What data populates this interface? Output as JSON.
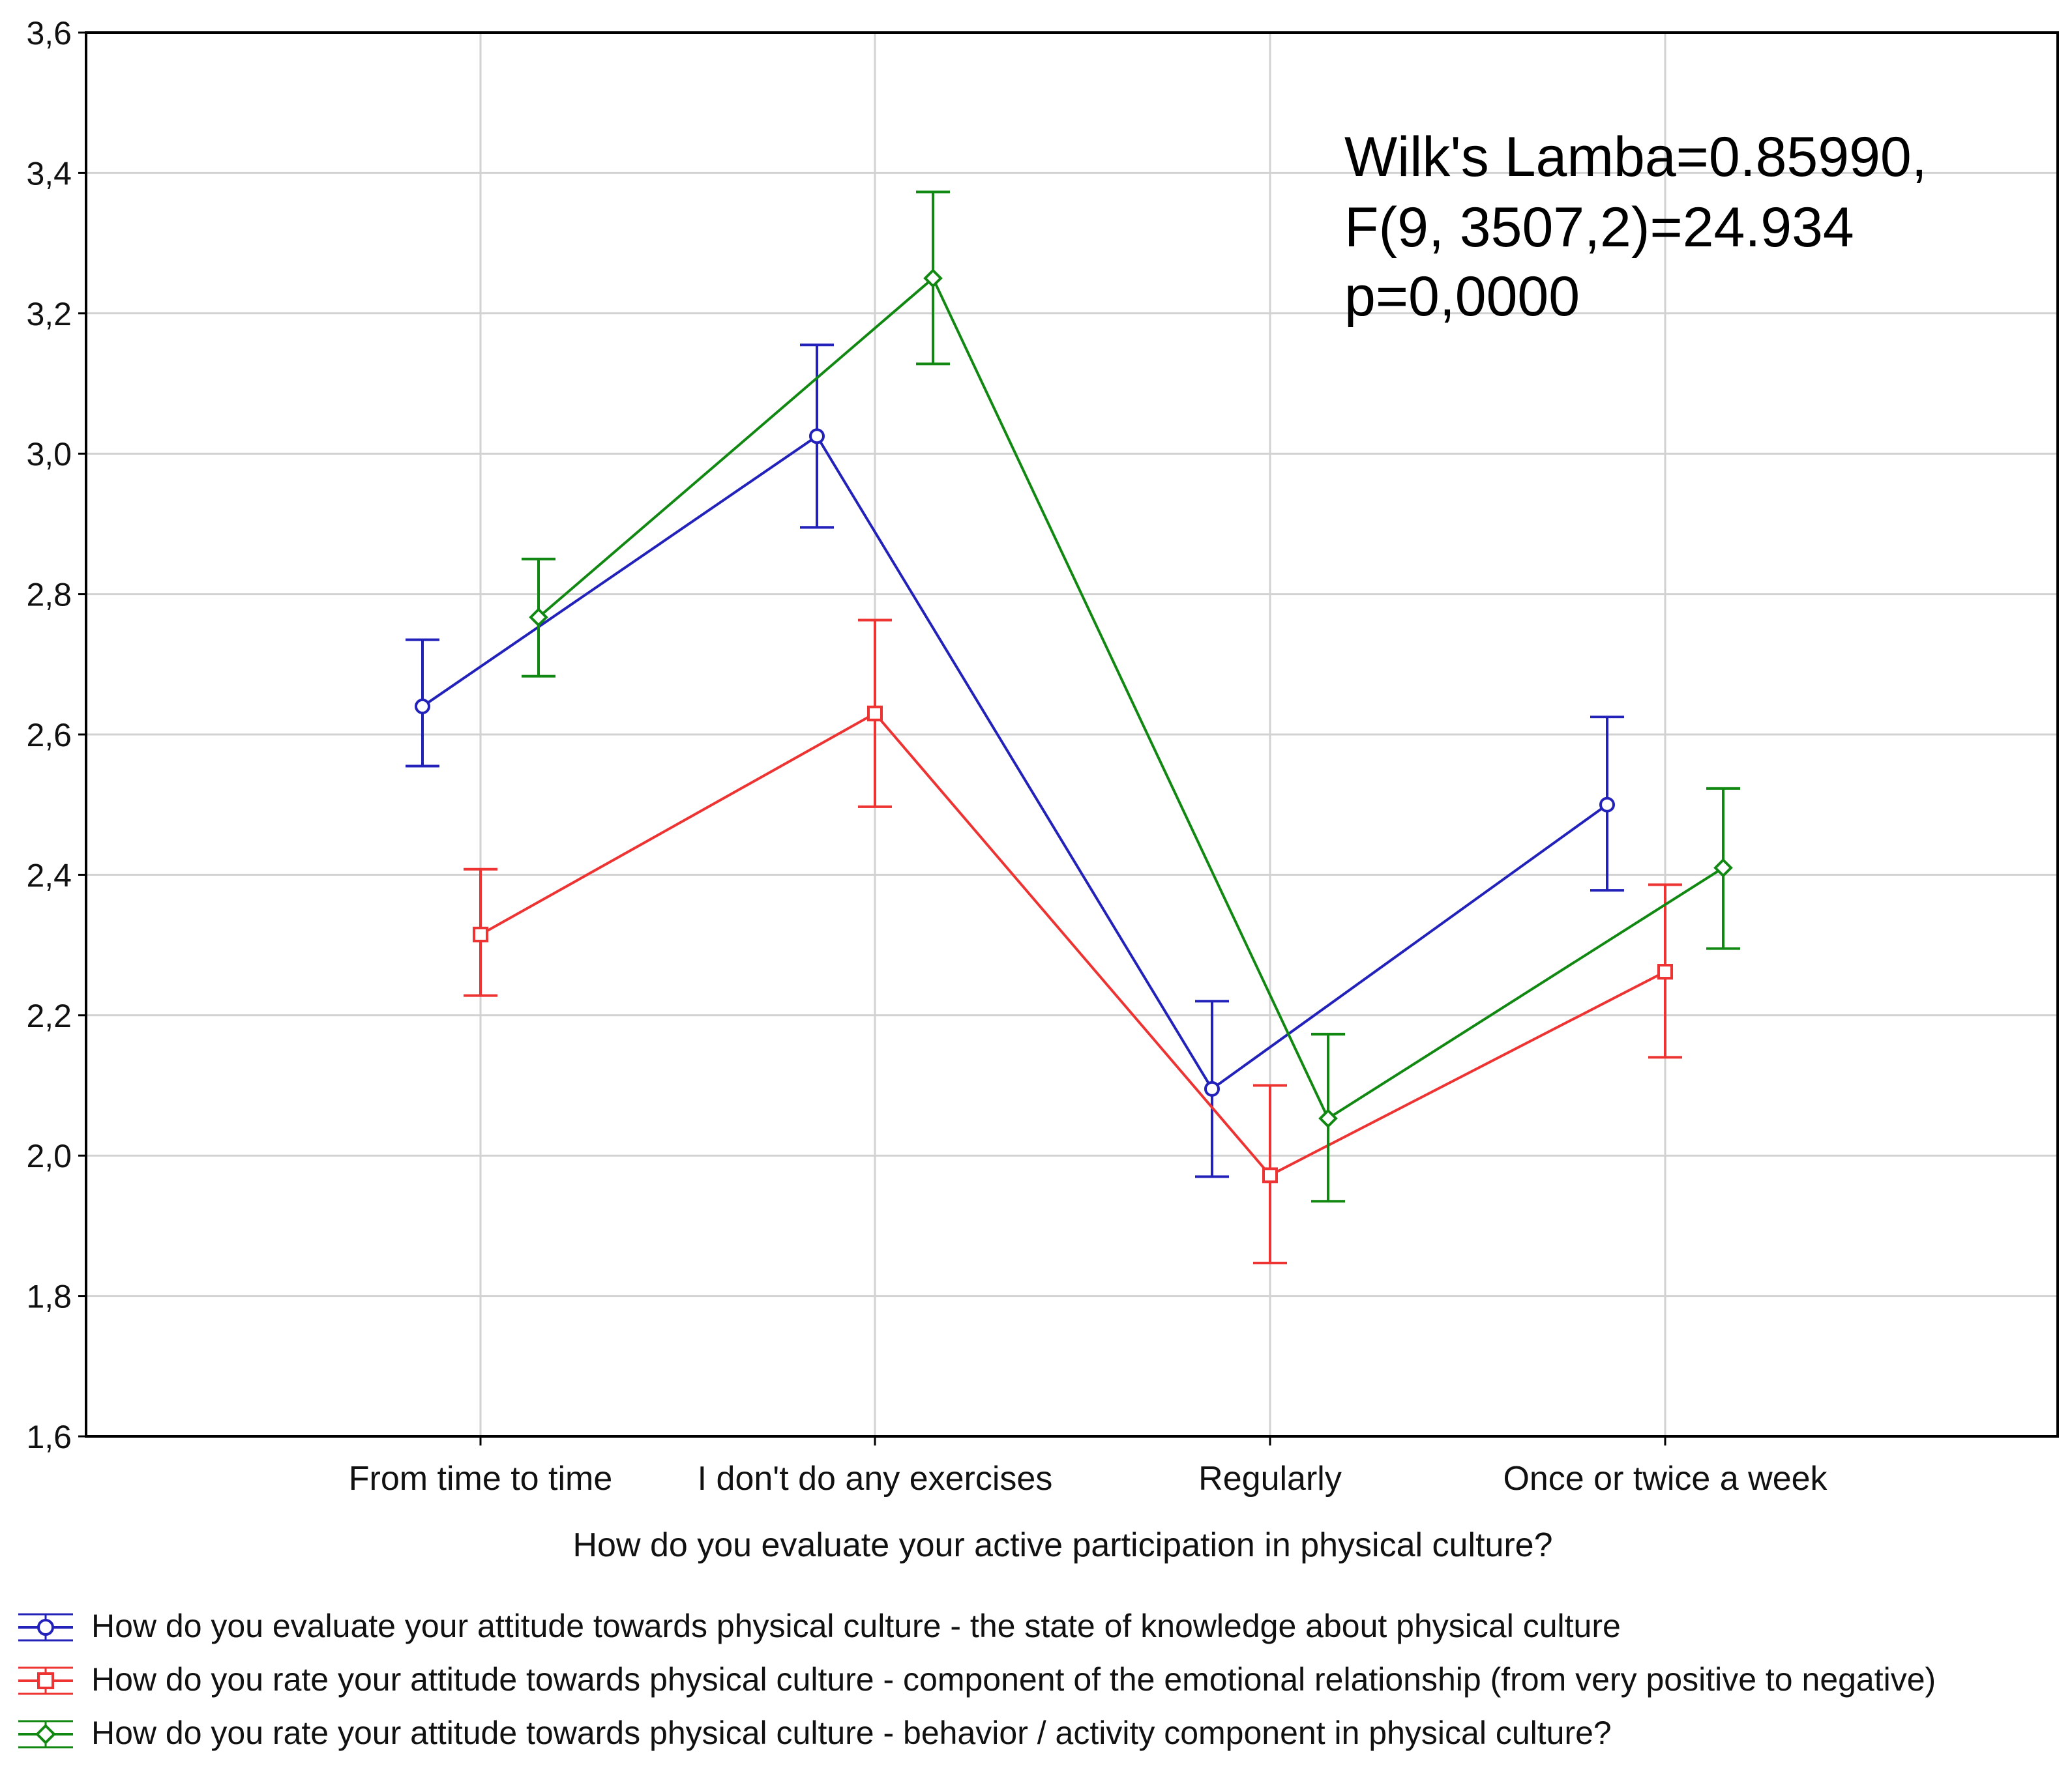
{
  "chart_data": {
    "type": "line",
    "title": "",
    "xlabel": "How do you evaluate your active participation in physical culture?",
    "ylabel": "",
    "ylim": [
      1.6,
      3.6
    ],
    "yticks": [
      1.6,
      1.8,
      2.0,
      2.2,
      2.4,
      2.6,
      2.8,
      3.0,
      3.2,
      3.4,
      3.6
    ],
    "ytick_labels": [
      "1,6",
      "1,8",
      "2,0",
      "2,2",
      "2,4",
      "2,6",
      "2,8",
      "3,0",
      "3,2",
      "3,4",
      "3,6"
    ],
    "grid": true,
    "categories": [
      "From time to time",
      "I don't do any exercises",
      "Regularly",
      "Once or twice a week"
    ],
    "error_bars": true,
    "legend_position": "bottom",
    "annotations": [
      "Wilk's Lamba=0.85990,",
      "F(9, 3507,2)=24.934",
      "p=0,0000"
    ],
    "series": [
      {
        "name": "How do you evaluate your attitude towards physical culture - the state of knowledge about physical culture",
        "color": "#2222bb",
        "marker": "circle",
        "values": [
          2.64,
          3.025,
          2.095,
          2.5
        ],
        "lower": [
          2.555,
          2.895,
          1.97,
          2.378
        ],
        "upper": [
          2.735,
          3.155,
          2.22,
          2.625
        ]
      },
      {
        "name": "How do you rate your attitude towards physical culture - component of the emotional relationship (from very positive to negative)",
        "color": "#ee3333",
        "marker": "square",
        "values": [
          2.315,
          2.63,
          1.972,
          2.262
        ],
        "lower": [
          2.228,
          2.497,
          1.847,
          2.14
        ],
        "upper": [
          2.408,
          2.763,
          2.1,
          2.386
        ]
      },
      {
        "name": "How do you rate your attitude towards physical culture - behavior / activity component in physical culture?",
        "color": "#118811",
        "marker": "diamond",
        "values": [
          2.767,
          3.25,
          2.053,
          2.41
        ],
        "lower": [
          2.683,
          3.128,
          1.935,
          2.295
        ],
        "upper": [
          2.85,
          3.373,
          2.173,
          2.523
        ]
      }
    ]
  }
}
